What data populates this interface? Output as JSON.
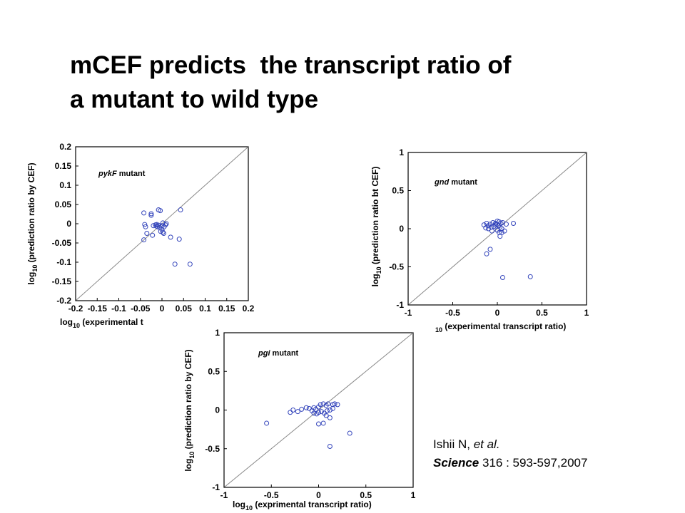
{
  "slide": {
    "title_line1": "mCEF predicts  the transcript ratio of",
    "title_line2": "a mutant to wild type"
  },
  "citation": {
    "authors": "Ishii N, ",
    "etal": "et al.",
    "journal": "Science",
    "volume_pages": " 316 : 593-597,2007"
  },
  "colors": {
    "marker": "#3344bb",
    "diagonal": "#888888",
    "axes": "#000000"
  },
  "chart_data": [
    {
      "id": "pykf",
      "type": "scatter",
      "annotation_italic": "pykF",
      "annotation_rest": " mutant",
      "ylabel_log": "log",
      "ylabel_sub": "10",
      "ylabel_rest": " (prediction ratio by CEF)",
      "xlabel_log": "log",
      "xlabel_sub": "10",
      "xlabel_rest": " (experimental t",
      "xlim": [
        -0.2,
        0.2
      ],
      "ylim": [
        -0.2,
        0.2
      ],
      "xticks": [
        -0.2,
        -0.15,
        -0.1,
        -0.05,
        0,
        0.05,
        0.1,
        0.15,
        0.2
      ],
      "xtick_labels": [
        "-0.2",
        "-0.15",
        "-0.1",
        "-0.05",
        "0",
        "0.05",
        "0.1",
        "0.15",
        "0.2"
      ],
      "yticks": [
        0.2,
        0.15,
        0.1,
        0.05,
        0,
        -0.05,
        -0.1,
        -0.15,
        -0.2
      ],
      "ytick_labels": [
        "0.2",
        "0.15",
        "0.1",
        "0.05",
        "0",
        "-0.05",
        "-0.1",
        "-0.15",
        "-0.2"
      ],
      "diagonal": true,
      "grid": false,
      "points": [
        [
          -0.042,
          0.028
        ],
        [
          -0.025,
          0.026
        ],
        [
          -0.025,
          0.022
        ],
        [
          -0.008,
          0.036
        ],
        [
          -0.004,
          0.034
        ],
        [
          0.043,
          0.036
        ],
        [
          -0.04,
          -0.002
        ],
        [
          -0.038,
          -0.008
        ],
        [
          -0.035,
          -0.025
        ],
        [
          -0.042,
          -0.042
        ],
        [
          -0.02,
          -0.005
        ],
        [
          -0.015,
          -0.003
        ],
        [
          -0.013,
          -0.006
        ],
        [
          -0.01,
          -0.008
        ],
        [
          -0.012,
          -0.002
        ],
        [
          -0.008,
          -0.004
        ],
        [
          -0.005,
          -0.01
        ],
        [
          0.0,
          -0.005
        ],
        [
          0.002,
          0.002
        ],
        [
          0.005,
          -0.008
        ],
        [
          0.008,
          -0.003
        ],
        [
          0.01,
          0.0
        ],
        [
          0.0,
          -0.015
        ],
        [
          -0.003,
          -0.02
        ],
        [
          0.002,
          -0.022
        ],
        [
          0.004,
          -0.025
        ],
        [
          -0.022,
          -0.03
        ],
        [
          0.02,
          -0.035
        ],
        [
          0.04,
          -0.04
        ],
        [
          0.03,
          -0.105
        ],
        [
          0.065,
          -0.105
        ]
      ]
    },
    {
      "id": "gnd",
      "type": "scatter",
      "annotation_italic": "gnd",
      "annotation_rest": " mutant",
      "ylabel_log": "log",
      "ylabel_sub": "10",
      "ylabel_rest": " (prediction ratio bt CEF)",
      "xlabel_log": "",
      "xlabel_sub": "10",
      "xlabel_rest": " (experimental transcript ratio)",
      "xlim": [
        -1,
        1
      ],
      "ylim": [
        -1,
        1
      ],
      "xticks": [
        -1,
        -0.5,
        0,
        0.5,
        1
      ],
      "xtick_labels": [
        "-1",
        "-0.5",
        "0",
        "0.5",
        "1"
      ],
      "yticks": [
        1,
        0.5,
        0,
        -0.5,
        -1
      ],
      "ytick_labels": [
        "1",
        "0.5",
        "0",
        "-0.5",
        "-1"
      ],
      "diagonal": true,
      "grid": false,
      "points": [
        [
          -0.15,
          0.05
        ],
        [
          -0.12,
          0.07
        ],
        [
          -0.1,
          0.04
        ],
        [
          -0.08,
          0.06
        ],
        [
          -0.05,
          0.08
        ],
        [
          -0.02,
          0.07
        ],
        [
          0.0,
          0.1
        ],
        [
          0.02,
          0.09
        ],
        [
          0.04,
          0.07
        ],
        [
          0.06,
          0.08
        ],
        [
          0.1,
          0.06
        ],
        [
          0.18,
          0.07
        ],
        [
          -0.13,
          0.01
        ],
        [
          -0.1,
          0.0
        ],
        [
          -0.07,
          0.02
        ],
        [
          -0.04,
          0.03
        ],
        [
          -0.02,
          0.05
        ],
        [
          0.0,
          0.06
        ],
        [
          0.01,
          0.04
        ],
        [
          0.03,
          0.02
        ],
        [
          0.05,
          0.0
        ],
        [
          -0.06,
          -0.03
        ],
        [
          0.0,
          -0.02
        ],
        [
          0.02,
          -0.05
        ],
        [
          0.05,
          -0.05
        ],
        [
          0.08,
          -0.03
        ],
        [
          0.03,
          -0.1
        ],
        [
          -0.08,
          -0.27
        ],
        [
          -0.12,
          -0.33
        ],
        [
          0.06,
          -0.64
        ],
        [
          0.37,
          -0.63
        ]
      ]
    },
    {
      "id": "pgi",
      "type": "scatter",
      "annotation_italic": "pgi",
      "annotation_rest": " mutant",
      "ylabel_log": "log",
      "ylabel_sub": "10",
      "ylabel_rest": " (prediction ratio by CEF)",
      "xlabel_log": "log",
      "xlabel_sub": "10",
      "xlabel_rest": " (exprimental transcript ratio)",
      "xlim": [
        -1,
        1
      ],
      "ylim": [
        -1,
        1
      ],
      "xticks": [
        -1,
        -0.5,
        0,
        0.5,
        1
      ],
      "xtick_labels": [
        "-1",
        "-0.5",
        "0",
        "0.5",
        "1"
      ],
      "yticks": [
        1,
        0.5,
        0,
        -0.5,
        -1
      ],
      "ytick_labels": [
        "1",
        "0.5",
        "0",
        "-0.5",
        "-1"
      ],
      "diagonal": true,
      "grid": false,
      "points": [
        [
          -0.55,
          -0.17
        ],
        [
          -0.3,
          -0.03
        ],
        [
          -0.27,
          0.0
        ],
        [
          -0.22,
          -0.02
        ],
        [
          -0.18,
          0.01
        ],
        [
          -0.13,
          0.03
        ],
        [
          -0.1,
          0.02
        ],
        [
          -0.07,
          -0.01
        ],
        [
          -0.05,
          0.03
        ],
        [
          -0.03,
          0.01
        ],
        [
          0.0,
          0.04
        ],
        [
          0.02,
          0.07
        ],
        [
          0.05,
          0.08
        ],
        [
          0.08,
          0.06
        ],
        [
          0.1,
          0.08
        ],
        [
          0.15,
          0.07
        ],
        [
          0.17,
          0.08
        ],
        [
          0.2,
          0.07
        ],
        [
          -0.05,
          -0.04
        ],
        [
          -0.02,
          -0.05
        ],
        [
          0.0,
          -0.03
        ],
        [
          0.03,
          -0.02
        ],
        [
          0.06,
          -0.04
        ],
        [
          0.09,
          -0.01
        ],
        [
          0.12,
          0.0
        ],
        [
          0.15,
          0.02
        ],
        [
          0.08,
          -0.07
        ],
        [
          0.12,
          -0.1
        ],
        [
          0.0,
          -0.18
        ],
        [
          0.05,
          -0.17
        ],
        [
          0.33,
          -0.3
        ],
        [
          0.12,
          -0.47
        ]
      ]
    }
  ]
}
